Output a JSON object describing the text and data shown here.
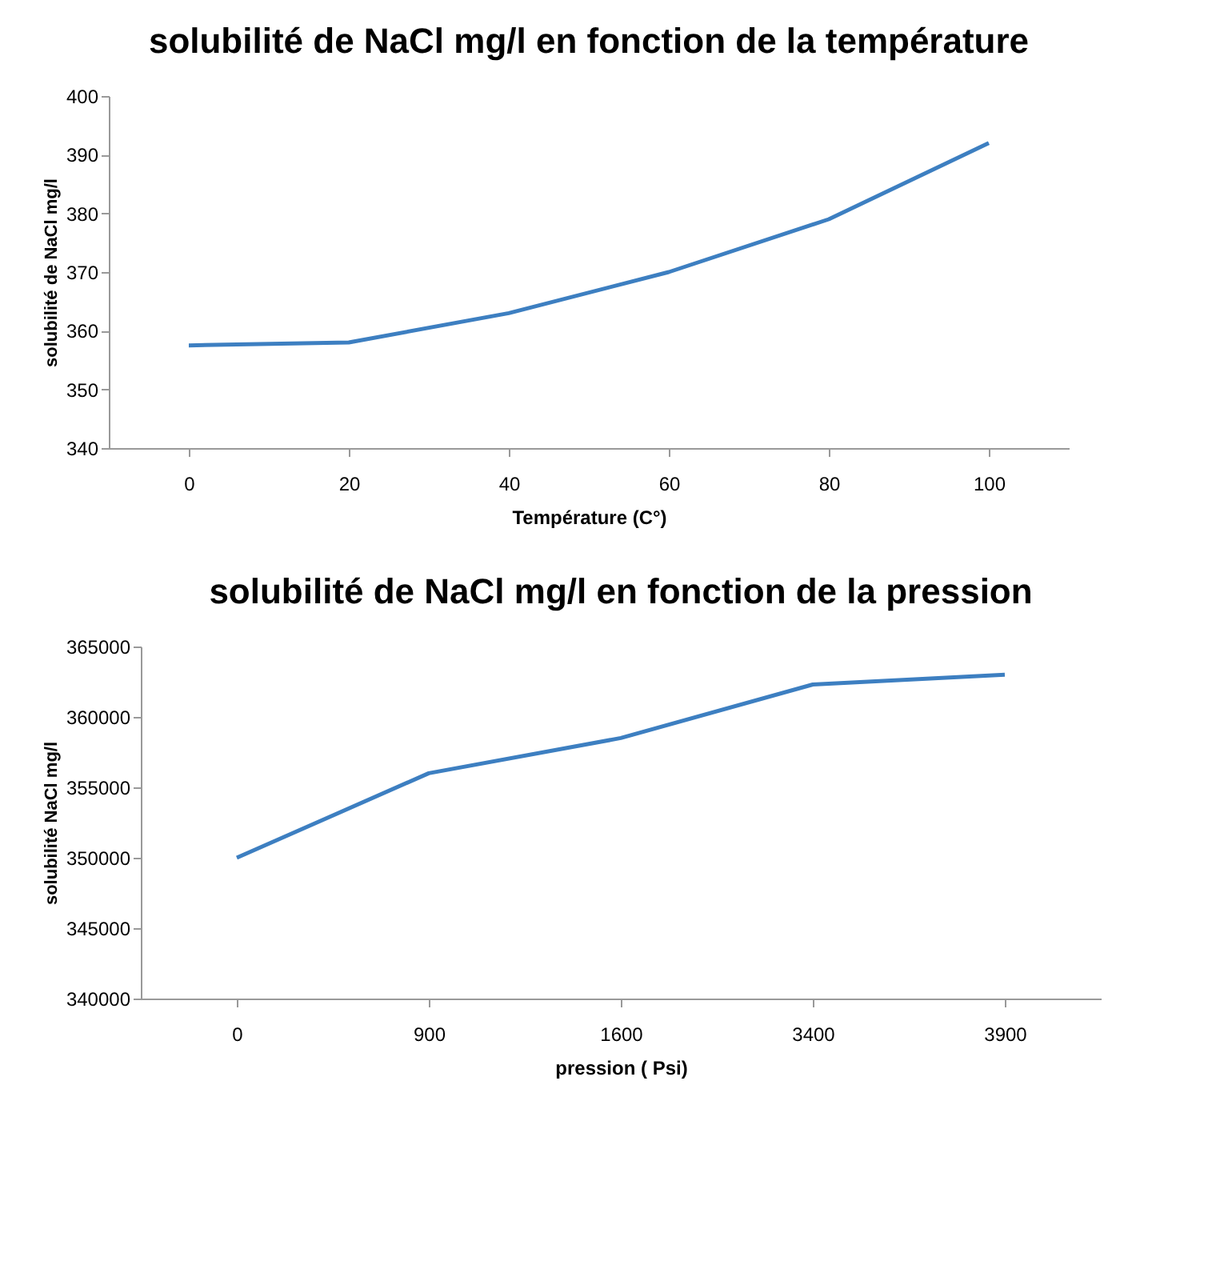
{
  "chart_data": [
    {
      "type": "line",
      "title": "solubilité de NaCl mg/l en fonction de la température",
      "xlabel": "Température (C°)",
      "ylabel": "solubilité de NaCl mg/l",
      "categories": [
        "0",
        "20",
        "40",
        "60",
        "80",
        "100"
      ],
      "series": [
        {
          "color": "#3d7fc1",
          "values": [
            357.5,
            358,
            363,
            370,
            379,
            392
          ]
        }
      ],
      "ylim": [
        340,
        400
      ],
      "yticks": [
        340,
        350,
        360,
        370,
        380,
        390,
        400
      ],
      "grid": false,
      "legend": false
    },
    {
      "type": "line",
      "title": "solubilité de NaCl mg/l en fonction de la pression",
      "xlabel": "pression ( Psi)",
      "ylabel": "solubilité NaCl mg/l",
      "categories": [
        "0",
        "900",
        "1600",
        "3400",
        "3900"
      ],
      "series": [
        {
          "color": "#3d7fc1",
          "values": [
            350000,
            356000,
            358500,
            362300,
            363000
          ]
        }
      ],
      "ylim": [
        340000,
        365000
      ],
      "yticks": [
        340000,
        345000,
        350000,
        355000,
        360000,
        365000
      ],
      "grid": false,
      "legend": false
    }
  ]
}
